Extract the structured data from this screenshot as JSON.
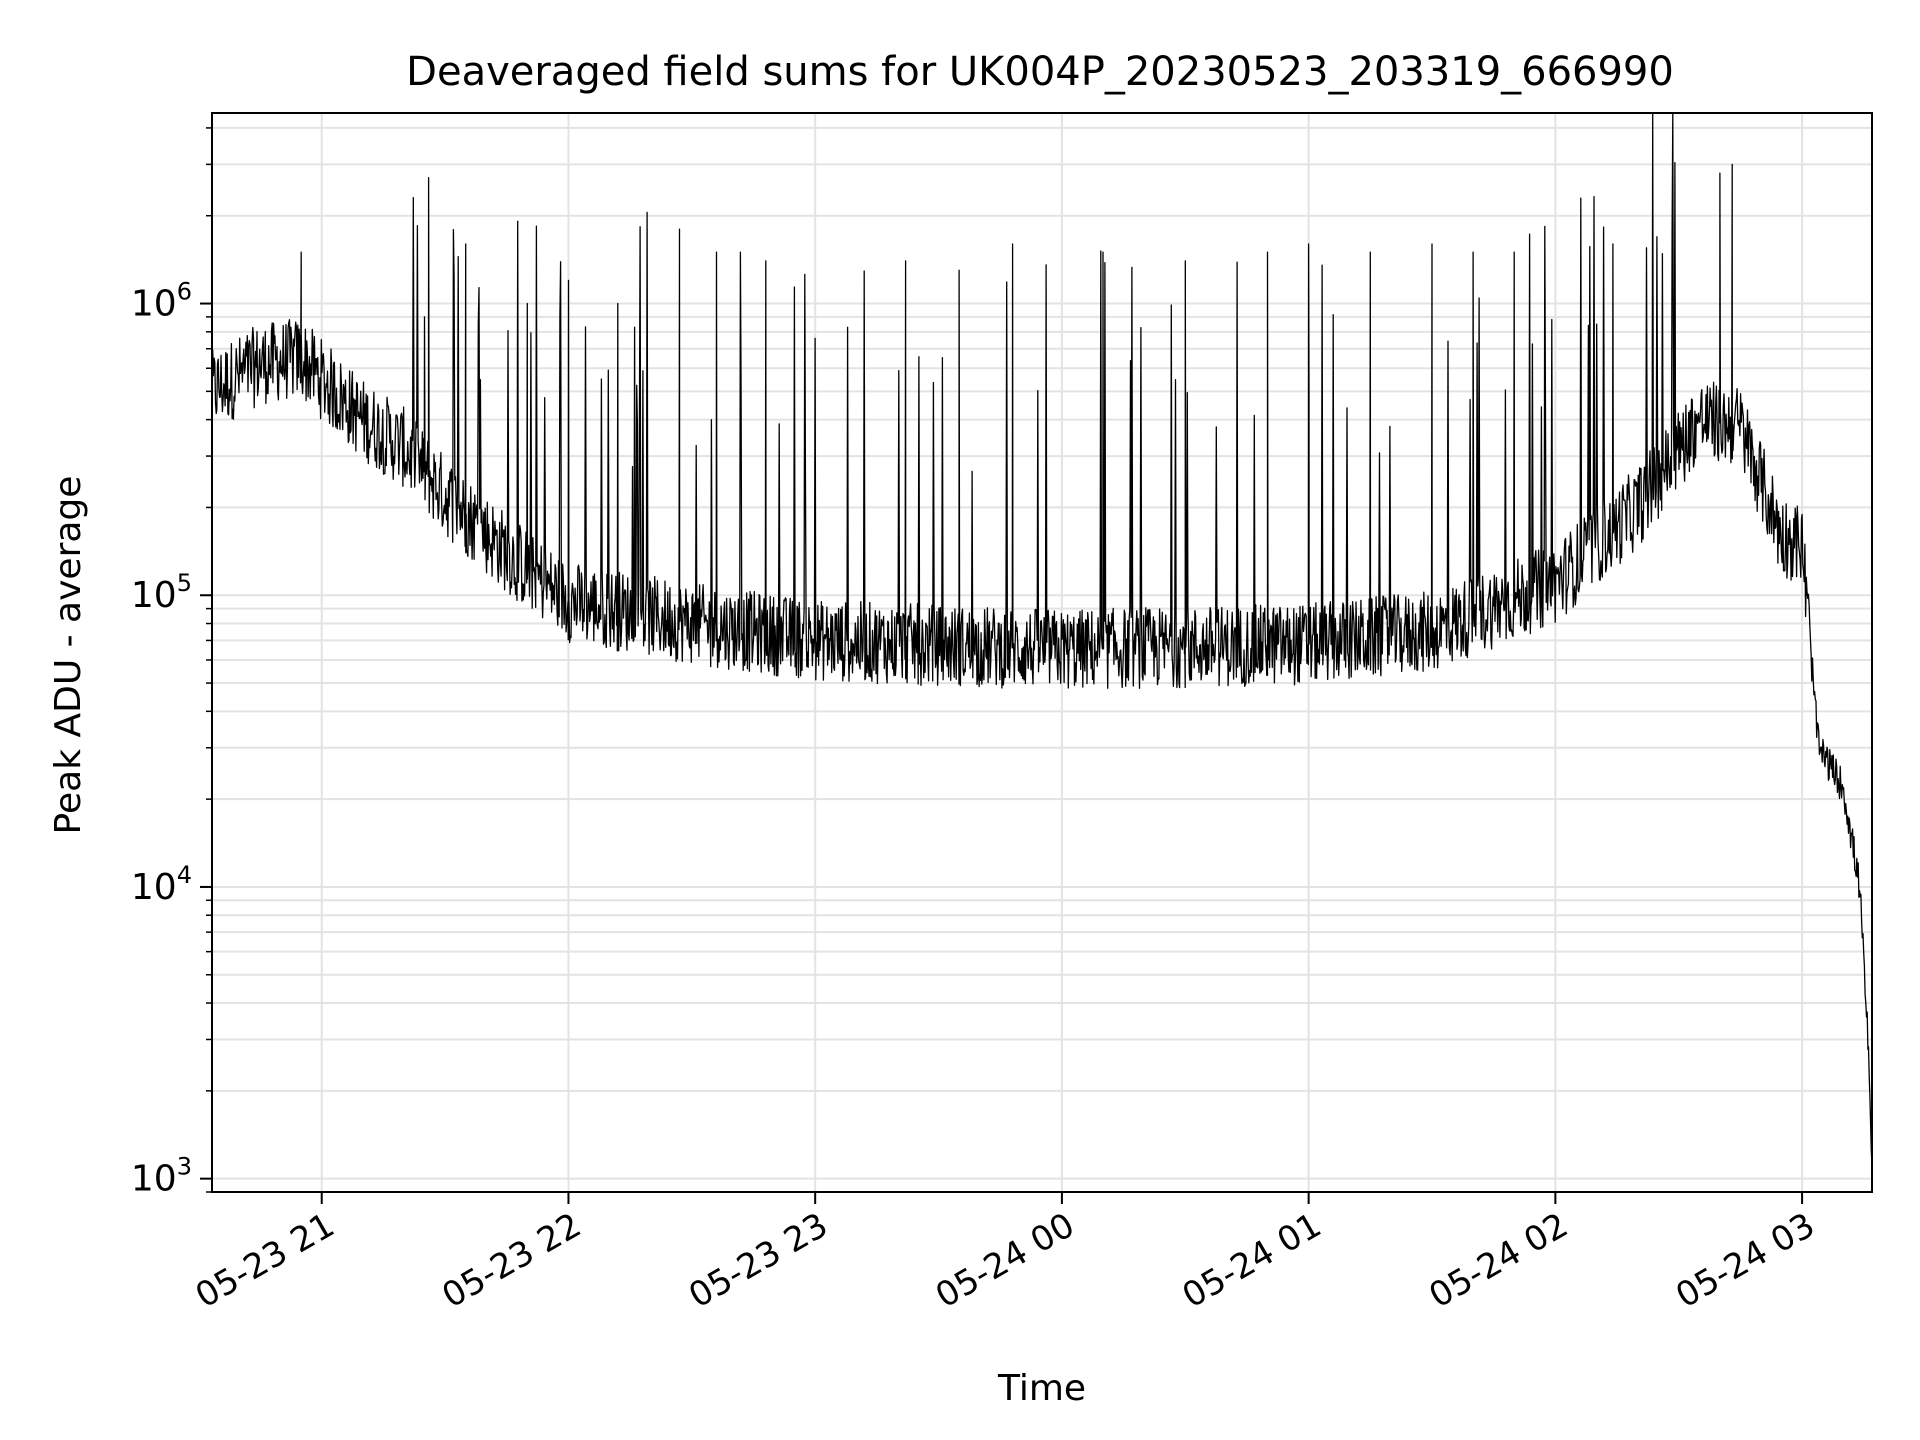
{
  "chart_data": {
    "type": "line",
    "title": "Deaveraged field sums for UK004P_20230523_203319_666990",
    "xlabel": "Time",
    "ylabel": "Peak ADU - average",
    "yscale": "log",
    "ylim": [
      900,
      4500000
    ],
    "xlim": [
      "2023-05-23 20:33:19",
      "2023-05-24 03:17:00"
    ],
    "grid": true,
    "x_ticks": [
      {
        "time": "2023-05-23 21:00",
        "label": "05-23 21"
      },
      {
        "time": "2023-05-23 22:00",
        "label": "05-23 22"
      },
      {
        "time": "2023-05-23 23:00",
        "label": "05-23 23"
      },
      {
        "time": "2023-05-24 00:00",
        "label": "05-24 00"
      },
      {
        "time": "2023-05-24 01:00",
        "label": "05-24 01"
      },
      {
        "time": "2023-05-24 02:00",
        "label": "05-24 02"
      },
      {
        "time": "2023-05-24 03:00",
        "label": "05-24 03"
      }
    ],
    "y_ticks": [
      {
        "value": 1000,
        "base": "10",
        "exp": "3"
      },
      {
        "value": 10000,
        "base": "10",
        "exp": "4"
      },
      {
        "value": 100000,
        "base": "10",
        "exp": "5"
      },
      {
        "value": 1000000,
        "base": "10",
        "exp": "6"
      }
    ],
    "series": [
      {
        "color": "#000000",
        "baseline": [
          {
            "time": "2023-05-23 20:33",
            "value": 500000
          },
          {
            "time": "2023-05-23 20:45",
            "value": 620000
          },
          {
            "time": "2023-05-23 20:55",
            "value": 650000
          },
          {
            "time": "2023-05-23 21:00",
            "value": 550000
          },
          {
            "time": "2023-05-23 21:10",
            "value": 400000
          },
          {
            "time": "2023-05-23 21:20",
            "value": 320000
          },
          {
            "time": "2023-05-23 21:30",
            "value": 220000
          },
          {
            "time": "2023-05-23 21:45",
            "value": 140000
          },
          {
            "time": "2023-05-23 22:00",
            "value": 95000
          },
          {
            "time": "2023-05-23 22:30",
            "value": 80000
          },
          {
            "time": "2023-05-23 23:00",
            "value": 70000
          },
          {
            "time": "2023-05-24 00:00",
            "value": 65000
          },
          {
            "time": "2023-05-24 01:00",
            "value": 68000
          },
          {
            "time": "2023-05-24 01:30",
            "value": 75000
          },
          {
            "time": "2023-05-24 02:00",
            "value": 110000
          },
          {
            "time": "2023-05-24 02:20",
            "value": 200000
          },
          {
            "time": "2023-05-24 02:35",
            "value": 400000
          },
          {
            "time": "2023-05-24 02:45",
            "value": 380000
          },
          {
            "time": "2023-05-24 02:55",
            "value": 160000
          },
          {
            "time": "2023-05-24 03:00",
            "value": 150000
          },
          {
            "time": "2023-05-24 03:04",
            "value": 30000
          },
          {
            "time": "2023-05-24 03:10",
            "value": 22000
          },
          {
            "time": "2023-05-24 03:14",
            "value": 10000
          },
          {
            "time": "2023-05-24 03:16",
            "value": 3000
          },
          {
            "time": "2023-05-24 03:17",
            "value": 1000
          }
        ],
        "spikes": [
          {
            "time": "2023-05-23 20:55",
            "value": 1500000
          },
          {
            "time": "2023-05-23 21:25",
            "value": 900000
          },
          {
            "time": "2023-05-23 21:25",
            "value": 900000
          },
          {
            "time": "2023-05-23 21:26",
            "value": 2700000
          },
          {
            "time": "2023-05-23 21:35",
            "value": 1600000
          },
          {
            "time": "2023-05-23 21:50",
            "value": 1000000
          },
          {
            "time": "2023-05-23 22:00",
            "value": 1200000
          },
          {
            "time": "2023-05-23 22:12",
            "value": 1000000
          },
          {
            "time": "2023-05-23 22:27",
            "value": 1800000
          },
          {
            "time": "2023-05-23 22:36",
            "value": 1500000
          },
          {
            "time": "2023-05-23 22:48",
            "value": 1400000
          },
          {
            "time": "2023-05-23 23:22",
            "value": 1400000
          },
          {
            "time": "2023-05-23 23:35",
            "value": 1300000
          },
          {
            "time": "2023-05-23 23:48",
            "value": 1600000
          },
          {
            "time": "2023-05-24 00:10",
            "value": 1500000
          },
          {
            "time": "2023-05-24 00:30",
            "value": 1400000
          },
          {
            "time": "2023-05-24 00:50",
            "value": 1500000
          },
          {
            "time": "2023-05-24 01:00",
            "value": 1600000
          },
          {
            "time": "2023-05-24 01:15",
            "value": 1500000
          },
          {
            "time": "2023-05-24 01:30",
            "value": 1600000
          },
          {
            "time": "2023-05-24 01:40",
            "value": 1500000
          },
          {
            "time": "2023-05-24 01:50",
            "value": 1500000
          },
          {
            "time": "2023-05-24 02:14",
            "value": 1600000
          },
          {
            "time": "2023-05-24 02:40",
            "value": 2800000
          },
          {
            "time": "2023-05-24 02:43",
            "value": 3000000
          }
        ]
      }
    ]
  }
}
